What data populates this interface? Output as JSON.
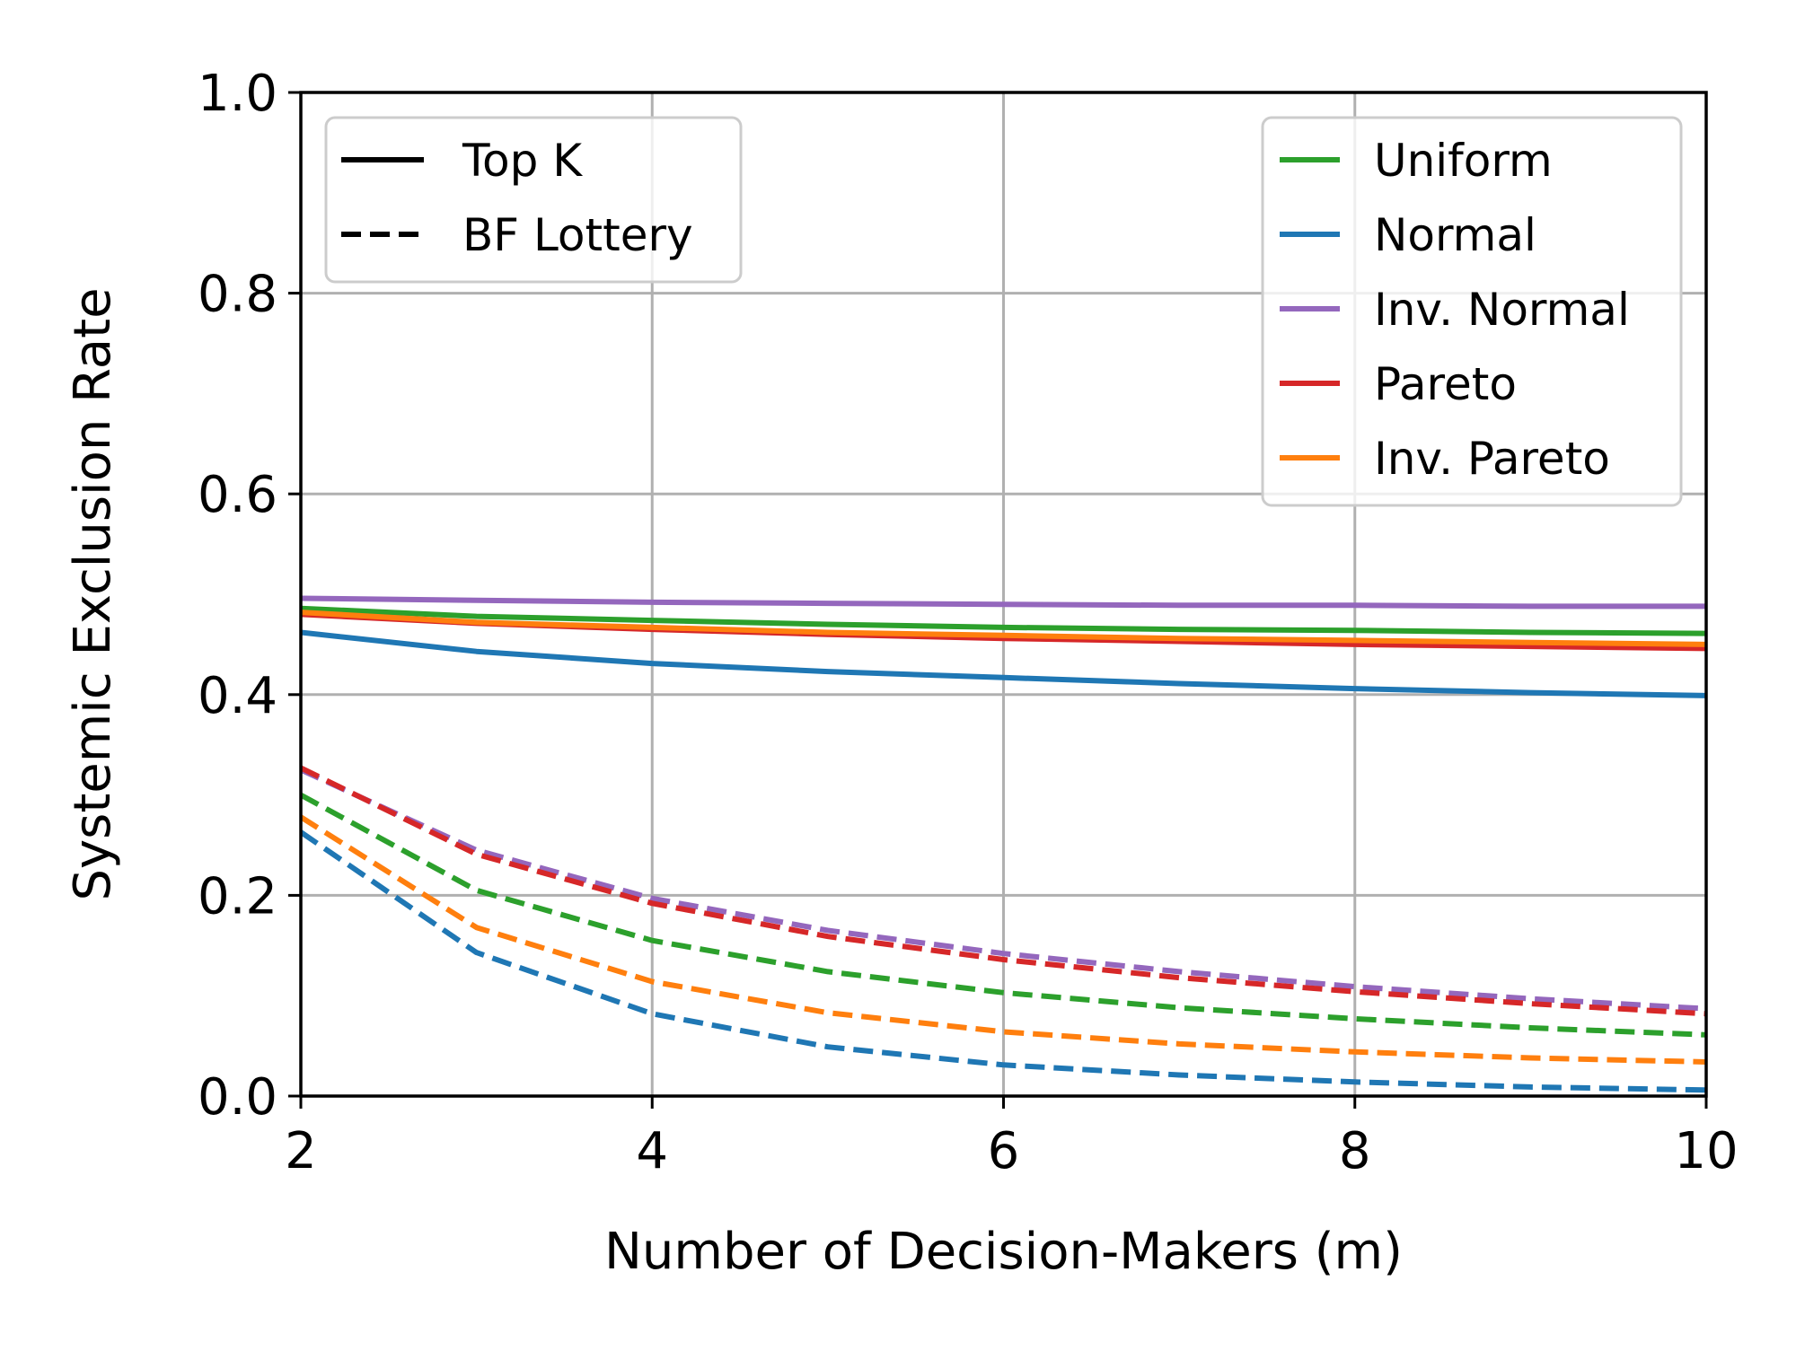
{
  "chart_data": {
    "type": "line",
    "title": "",
    "xlabel": "Number of Decision-Makers (m)",
    "ylabel": "Systemic Exclusion Rate",
    "xlim": [
      2,
      10
    ],
    "ylim": [
      0,
      1
    ],
    "xticks": [
      "2",
      "4",
      "6",
      "8",
      "10"
    ],
    "yticks": [
      "0.0",
      "0.2",
      "0.4",
      "0.6",
      "0.8",
      "1.0"
    ],
    "grid": true,
    "x": [
      2,
      3,
      4,
      5,
      6,
      7,
      8,
      9,
      10
    ],
    "style_legend": {
      "placement": "top-left",
      "entries": [
        {
          "label": "Top K",
          "dash": "solid"
        },
        {
          "label": "BF Lottery",
          "dash": "dashed"
        }
      ]
    },
    "color_legend": {
      "placement": "top-right",
      "entries": [
        {
          "label": "Uniform",
          "color": "#2ca02c"
        },
        {
          "label": "Normal",
          "color": "#1f77b4"
        },
        {
          "label": "Inv. Normal",
          "color": "#9467bd"
        },
        {
          "label": "Pareto",
          "color": "#d62728"
        },
        {
          "label": "Inv. Pareto",
          "color": "#ff7f0e"
        }
      ]
    },
    "series": [
      {
        "name": "Uniform",
        "method": "Top K",
        "color": "#2ca02c",
        "dash": "solid",
        "values": [
          0.486,
          0.478,
          0.474,
          0.47,
          0.467,
          0.465,
          0.464,
          0.462,
          0.461
        ]
      },
      {
        "name": "Normal",
        "method": "Top K",
        "color": "#1f77b4",
        "dash": "solid",
        "values": [
          0.462,
          0.443,
          0.431,
          0.423,
          0.417,
          0.411,
          0.406,
          0.402,
          0.399
        ]
      },
      {
        "name": "Inv. Normal",
        "method": "Top K",
        "color": "#9467bd",
        "dash": "solid",
        "values": [
          0.496,
          0.494,
          0.492,
          0.491,
          0.49,
          0.489,
          0.489,
          0.488,
          0.488
        ]
      },
      {
        "name": "Pareto",
        "method": "Top K",
        "color": "#d62728",
        "dash": "solid",
        "values": [
          0.48,
          0.471,
          0.465,
          0.46,
          0.456,
          0.453,
          0.45,
          0.448,
          0.446
        ]
      },
      {
        "name": "Inv. Pareto",
        "method": "Top K",
        "color": "#ff7f0e",
        "dash": "solid",
        "values": [
          0.482,
          0.472,
          0.467,
          0.462,
          0.459,
          0.456,
          0.454,
          0.452,
          0.45
        ]
      },
      {
        "name": "Uniform",
        "method": "BF Lottery",
        "color": "#2ca02c",
        "dash": "dashed",
        "values": [
          0.3,
          0.205,
          0.155,
          0.124,
          0.103,
          0.088,
          0.077,
          0.068,
          0.061
        ]
      },
      {
        "name": "Normal",
        "method": "BF Lottery",
        "color": "#1f77b4",
        "dash": "dashed",
        "values": [
          0.263,
          0.143,
          0.082,
          0.049,
          0.031,
          0.021,
          0.014,
          0.009,
          0.006
        ]
      },
      {
        "name": "Inv. Normal",
        "method": "BF Lottery",
        "color": "#9467bd",
        "dash": "dashed",
        "values": [
          0.325,
          0.245,
          0.197,
          0.165,
          0.142,
          0.124,
          0.109,
          0.097,
          0.087
        ]
      },
      {
        "name": "Pareto",
        "method": "BF Lottery",
        "color": "#d62728",
        "dash": "dashed",
        "values": [
          0.327,
          0.241,
          0.192,
          0.159,
          0.136,
          0.118,
          0.104,
          0.092,
          0.082
        ]
      },
      {
        "name": "Inv. Pareto",
        "method": "BF Lottery",
        "color": "#ff7f0e",
        "dash": "dashed",
        "values": [
          0.278,
          0.168,
          0.114,
          0.083,
          0.064,
          0.052,
          0.044,
          0.038,
          0.034
        ]
      }
    ]
  }
}
